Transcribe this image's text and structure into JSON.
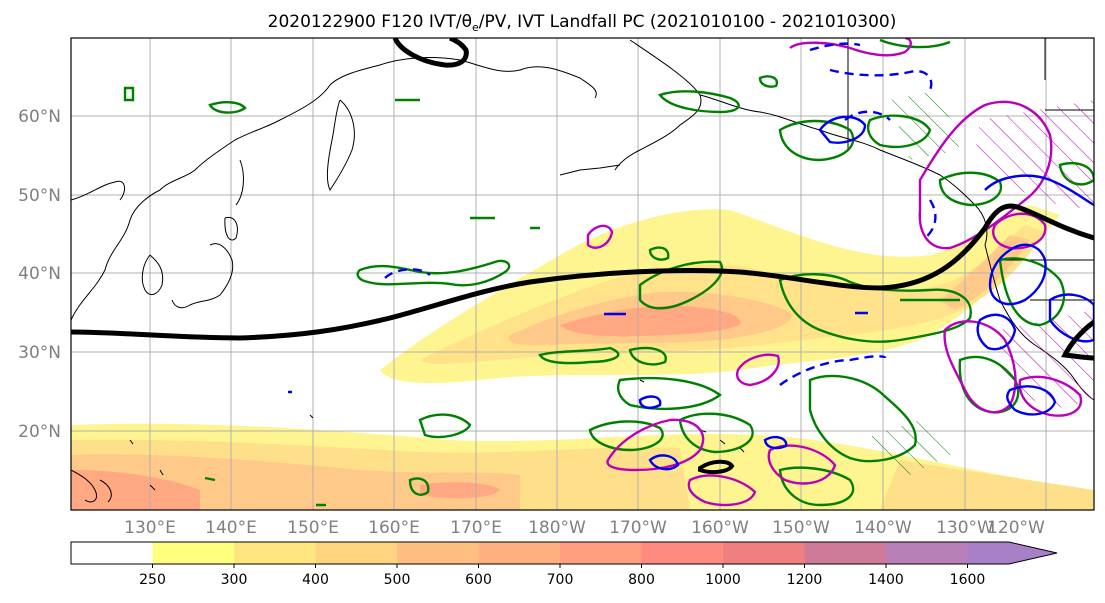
{
  "title": "2020122900 F120 IVT/θ",
  "title_sub": "e",
  "title_rest": "/PV, IVT Landfall PC (2021010100 - 2021010300)",
  "lat_labels": [
    "60°N",
    "50°N",
    "40°N",
    "30°N",
    "20°N"
  ],
  "lon_labels": [
    "130°E",
    "140°E",
    "150°E",
    "160°E",
    "170°E",
    "180°W",
    "170°W",
    "160°W",
    "150°W",
    "140°W",
    "130°W",
    "120°W"
  ],
  "colorbar": {
    "ticks": [
      "250",
      "300",
      "400",
      "500",
      "600",
      "700",
      "800",
      "1000",
      "1200",
      "1400",
      "1600"
    ],
    "colors": [
      "#ffffff",
      "#ffff80",
      "#ffe680",
      "#ffd480",
      "#ffbf80",
      "#ffb080",
      "#ff9f80",
      "#ff8a80",
      "#f08080",
      "#d07a9a",
      "#b880b8",
      "#a880c8"
    ]
  },
  "legend_colors": {
    "ivt_contour": "#000000",
    "theta_e": "#008000",
    "pv_positive": "#bb00bb",
    "pv_negative": "#0000ff"
  }
}
